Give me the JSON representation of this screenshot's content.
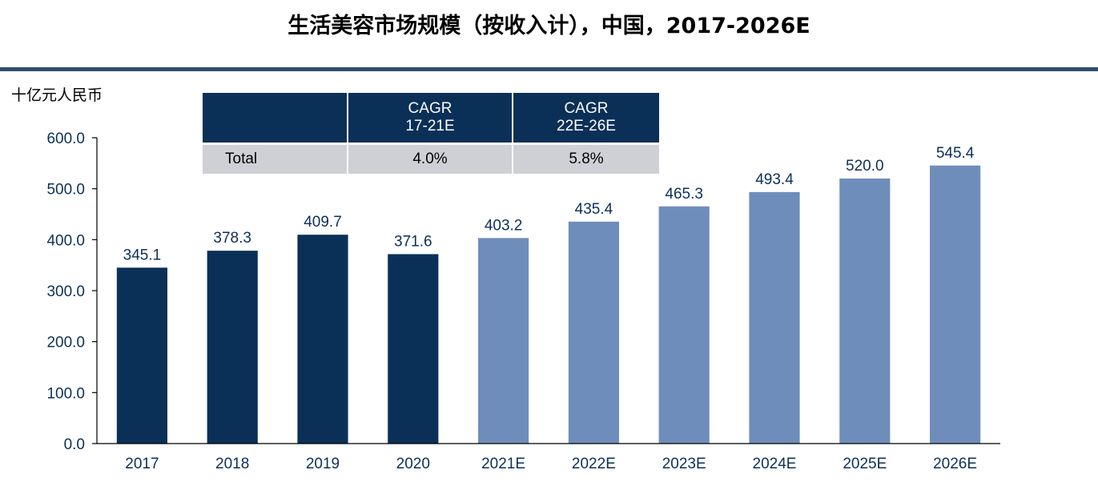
{
  "title": "生活美容市场规模（按收入计），中国，2017-2026E",
  "unit_label": "十亿元人民币",
  "colors": {
    "actual": "#0b3058",
    "forecast": "#6f8dba",
    "rule": "#2e4e6e",
    "label": "#0b3058"
  },
  "cagr_table": {
    "headers": [
      {
        "line1": "",
        "line2": ""
      },
      {
        "line1": "CAGR",
        "line2": "17-21E"
      },
      {
        "line1": "CAGR",
        "line2": "22E-26E"
      }
    ],
    "rows": [
      {
        "label": "Total",
        "values": [
          "4.0%",
          "5.8%"
        ]
      }
    ]
  },
  "chart_data": {
    "type": "bar",
    "title": "生活美容市场规模（按收入计），中国，2017-2026E",
    "ylabel": "十亿元人民币",
    "xlabel": "",
    "categories": [
      "2017",
      "2018",
      "2019",
      "2020",
      "2021E",
      "2022E",
      "2023E",
      "2024E",
      "2025E",
      "2026E"
    ],
    "values": [
      345.1,
      378.3,
      409.7,
      371.6,
      403.2,
      435.4,
      465.3,
      493.4,
      520.0,
      545.4
    ],
    "value_labels": [
      "345.1",
      "378.3",
      "409.7",
      "371.6",
      "403.2",
      "435.4",
      "465.3",
      "493.4",
      "520.0",
      "545.4"
    ],
    "forecast_from_index": 4,
    "ylim": [
      0,
      600
    ],
    "yticks": [
      0,
      100,
      200,
      300,
      400,
      500,
      600
    ],
    "ytick_labels": [
      "0.0",
      "100.0",
      "200.0",
      "300.0",
      "400.0",
      "500.0",
      "600.0"
    ],
    "grid": false,
    "legend": "none"
  }
}
